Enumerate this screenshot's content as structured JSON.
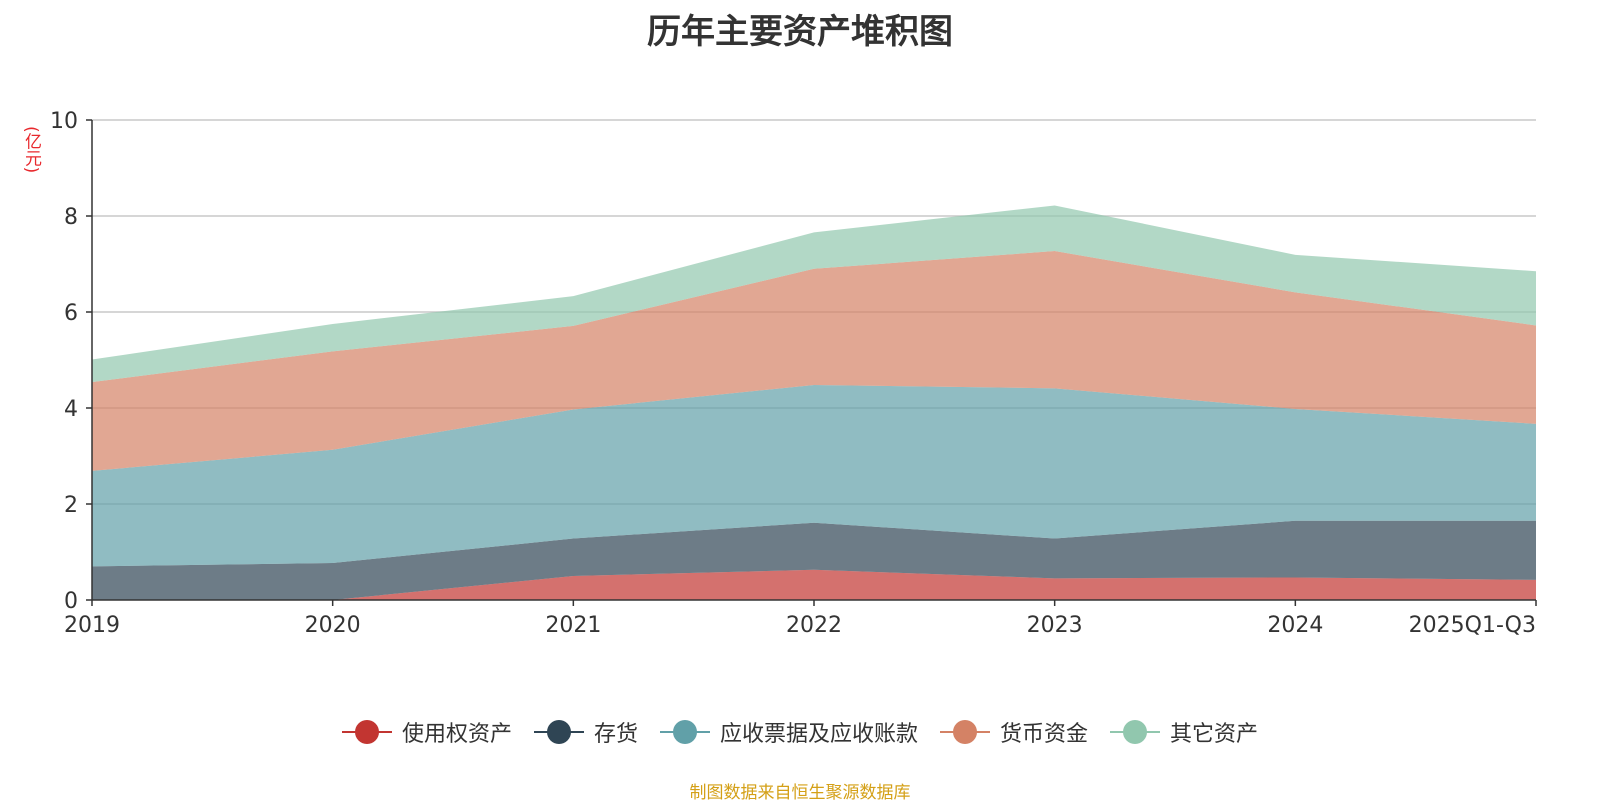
{
  "chart_data": {
    "type": "area",
    "stacked": true,
    "title": "历年主要资产堆积图",
    "unit_label": "(亿元)",
    "categories": [
      "2019",
      "2020",
      "2021",
      "2022",
      "2023",
      "2024",
      "2025Q1-Q3"
    ],
    "ylim": [
      0,
      10
    ],
    "yticks": [
      0,
      2,
      4,
      6,
      8,
      10
    ],
    "grid": true,
    "legend_position": "bottom",
    "series": [
      {
        "name": "使用权资产",
        "color": "#c23531",
        "values": [
          0.0,
          0.0,
          0.5,
          0.63,
          0.45,
          0.47,
          0.42
        ]
      },
      {
        "name": "存货",
        "color": "#2f4554",
        "values": [
          0.7,
          0.77,
          0.78,
          0.98,
          0.83,
          1.18,
          1.23
        ]
      },
      {
        "name": "应收票据及应收账款",
        "color": "#61a0a8",
        "values": [
          1.99,
          2.36,
          2.69,
          2.87,
          3.13,
          2.33,
          2.02
        ]
      },
      {
        "name": "货币资金",
        "color": "#d48265",
        "values": [
          1.85,
          2.05,
          1.74,
          2.42,
          2.86,
          2.43,
          2.05
        ]
      },
      {
        "name": "其它资产",
        "color": "#91c7ae",
        "values": [
          0.47,
          0.57,
          0.62,
          0.76,
          0.95,
          0.78,
          1.13
        ]
      }
    ],
    "source_note": "制图数据来自恒生聚源数据库"
  }
}
